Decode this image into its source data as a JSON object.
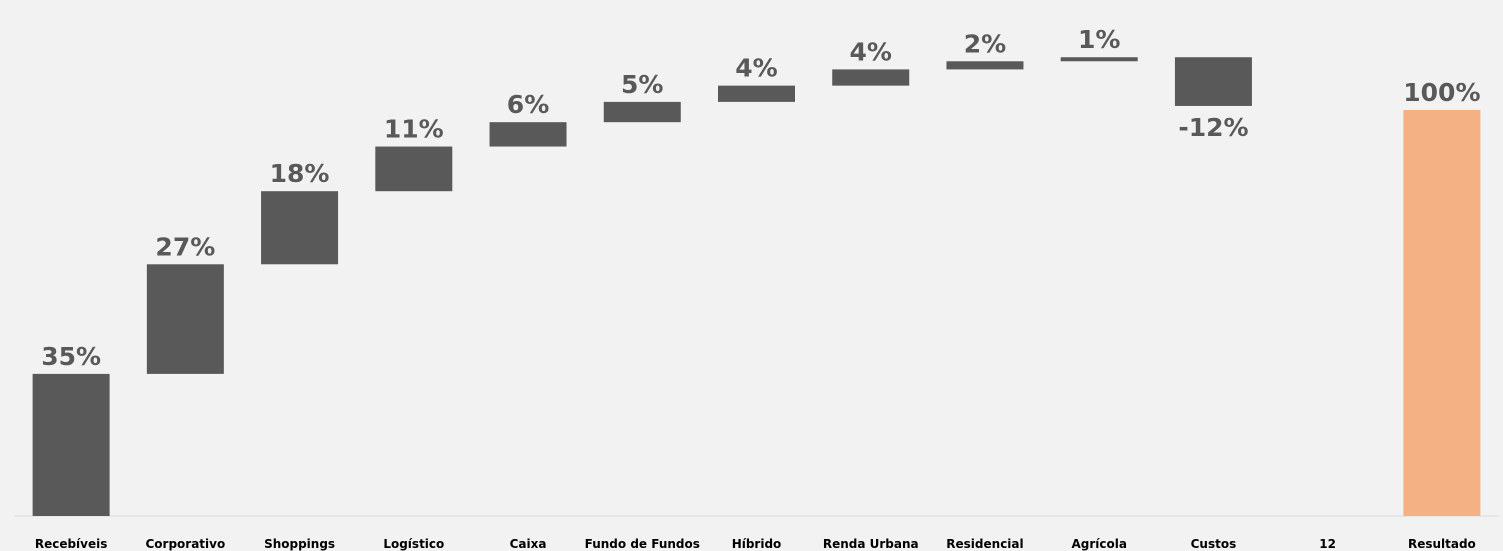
{
  "chart_data": {
    "type": "bar",
    "subtype": "waterfall",
    "categories": [
      "Recebíveis",
      "Corporativo",
      "Shoppings",
      "Logístico",
      "Caixa",
      "Fundo de Fundos",
      "Híbrido",
      "Renda Urbana",
      "Residencial",
      "Agrícola",
      "Custos",
      "12",
      "Resultado"
    ],
    "values": [
      35,
      27,
      18,
      11,
      6,
      5,
      4,
      4,
      2,
      1,
      -12,
      null,
      100
    ],
    "value_labels": [
      "35%",
      "27%",
      "18%",
      "11%",
      "6%",
      "5%",
      "4%",
      "4%",
      "2%",
      "1%",
      "-12%",
      "",
      "100%"
    ],
    "total_index": 12,
    "ylim": [
      0,
      112
    ],
    "grid": false,
    "legend": "none",
    "colors": {
      "bar": "#595959",
      "total": "#f4b183",
      "value_label": "#595959",
      "category_label": "#000000",
      "axis": "#d9d9d9",
      "background": "#f2f2f2"
    }
  }
}
